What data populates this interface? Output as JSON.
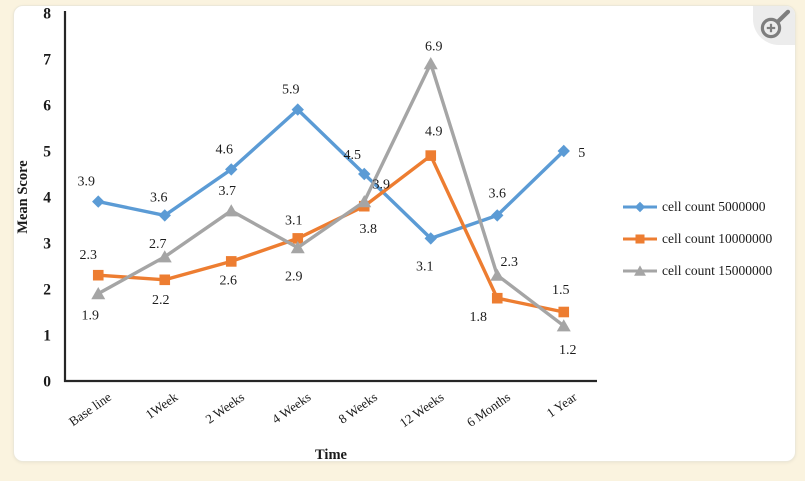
{
  "page": {
    "background": "#FAF3DF"
  },
  "card": {
    "background": "#FFFFFF",
    "border": "#ECE8D9"
  },
  "zoom_control": {
    "icon": "magnifier-plus-icon",
    "icon_color": "#7E7E7E",
    "background": "#ECECEC"
  },
  "chart_data": {
    "type": "line",
    "title": "",
    "xlabel": "Time",
    "ylabel": "Mean Score",
    "ylim": [
      0,
      8
    ],
    "yticks": [
      0,
      1,
      2,
      3,
      4,
      5,
      6,
      7,
      8
    ],
    "grid": false,
    "legend_position": "right",
    "axis_color": "#262626",
    "text_color": "#1A1A1A",
    "categories": [
      "Base line",
      "1Week",
      "2 Weeks",
      "4 Weeks",
      "8 Weeks",
      "12 Weeks",
      "6 Months",
      "1 Year"
    ],
    "series": [
      {
        "name": "cell count 5000000",
        "color": "#5B9BD5",
        "marker": "diamond",
        "values": [
          3.9,
          3.6,
          4.6,
          5.9,
          4.5,
          3.1,
          3.6,
          5
        ]
      },
      {
        "name": "cell count 10000000",
        "color": "#ED7D31",
        "marker": "square",
        "values": [
          2.3,
          2.2,
          2.6,
          3.1,
          3.8,
          4.9,
          1.8,
          1.5
        ]
      },
      {
        "name": "cell count 15000000",
        "color": "#A5A5A5",
        "marker": "triangle",
        "values": [
          1.9,
          2.7,
          3.7,
          2.9,
          3.9,
          6.9,
          2.3,
          1.2
        ]
      }
    ]
  }
}
